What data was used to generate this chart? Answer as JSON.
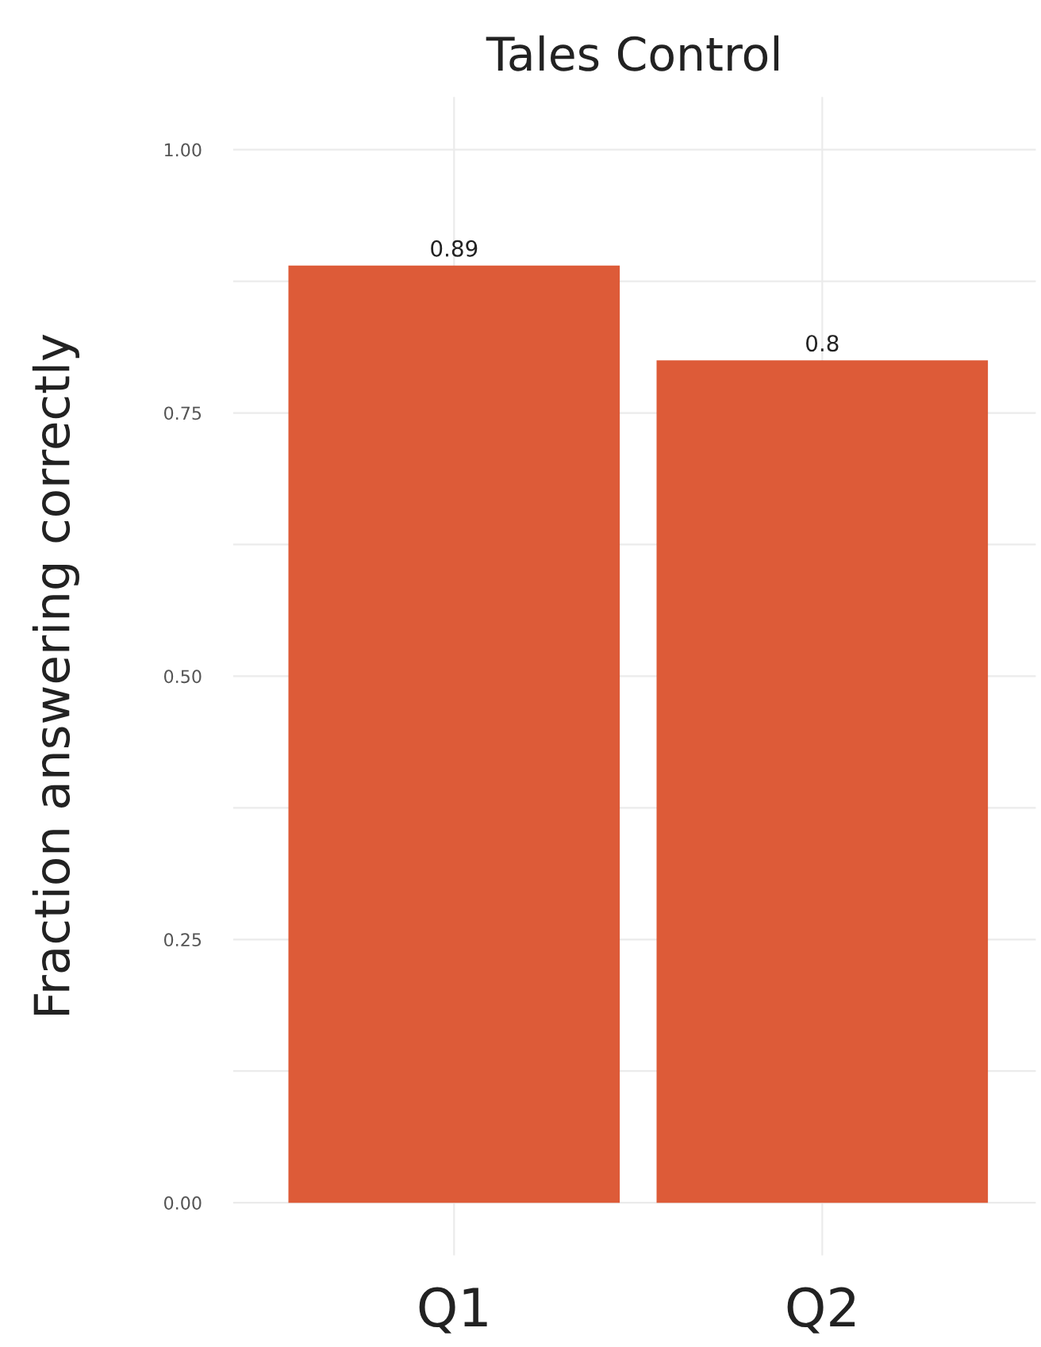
{
  "chart_data": {
    "type": "bar",
    "title": "Tales Control",
    "ylabel": "Fraction answering correctly",
    "categories": [
      "Q1",
      "Q2"
    ],
    "values": [
      0.89,
      0.8
    ],
    "color": "#dd5b38",
    "ylim": [
      -0.05,
      1.05
    ],
    "yticks": [
      "0.00",
      {
        "value": 0.125,
        "label": null
      },
      "0.25",
      {
        "value": 0.375,
        "label": null
      },
      "0.50",
      {
        "value": 0.625,
        "label": null
      },
      "0.75",
      {
        "value": 0.875,
        "label": null
      },
      "1.00"
    ],
    "grid": true,
    "data_labels": true
  }
}
